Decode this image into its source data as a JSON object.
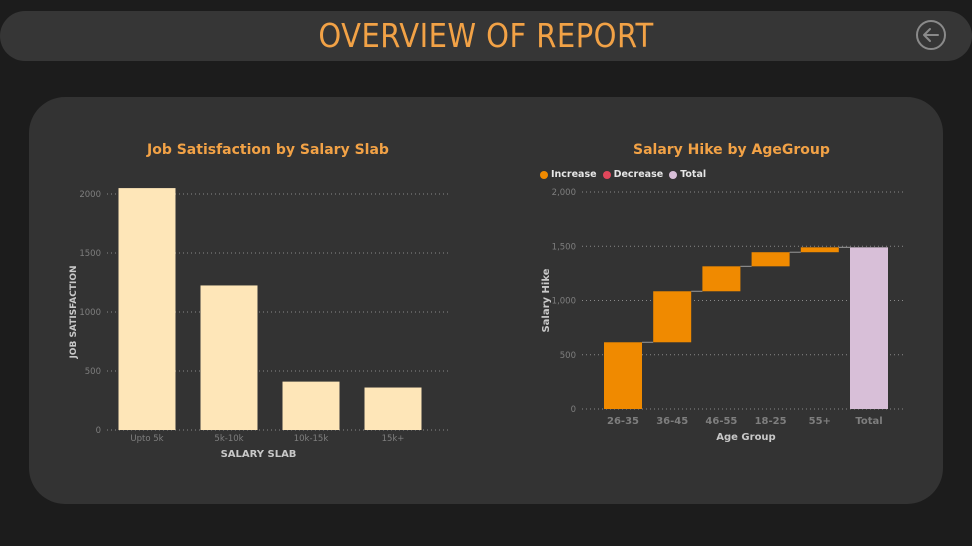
{
  "header": {
    "title": "OVERVIEW OF REPORT",
    "back_icon": "back-arrow-icon"
  },
  "colors": {
    "accent": "#f2a246",
    "bar_fill": "#fee6b8",
    "increase": "#f08a00",
    "decrease": "#e0475b",
    "total": "#d8bfd8",
    "axis_text": "#7e7e7e",
    "grid": "#8a8a8a"
  },
  "chart_data": [
    {
      "type": "bar",
      "title": "Job Satisfaction by Salary Slab",
      "xlabel": "SALARY SLAB",
      "ylabel": "JOB SATISFACTION",
      "categories": [
        "Upto 5k",
        "5k-10k",
        "10k-15k",
        "15k+"
      ],
      "values": [
        2050,
        1225,
        410,
        360
      ],
      "ylim": [
        0,
        2000
      ],
      "yticks": [
        0,
        500,
        1000,
        1500,
        2000
      ],
      "grid": true
    },
    {
      "type": "waterfall",
      "title": "Salary Hike by AgeGroup",
      "xlabel": "Age Group",
      "ylabel": "Salary Hike",
      "legend": [
        "Increase",
        "Decrease",
        "Total"
      ],
      "legend_position": "top-left",
      "categories": [
        "26-35",
        "36-45",
        "46-55",
        "18-25",
        "55+",
        "Total"
      ],
      "values": [
        615,
        470,
        230,
        130,
        45,
        1490
      ],
      "ylim": [
        0,
        2000
      ],
      "yticks": [
        "0",
        "500",
        "1,000",
        "1,500",
        "2,000"
      ],
      "grid": true
    }
  ]
}
